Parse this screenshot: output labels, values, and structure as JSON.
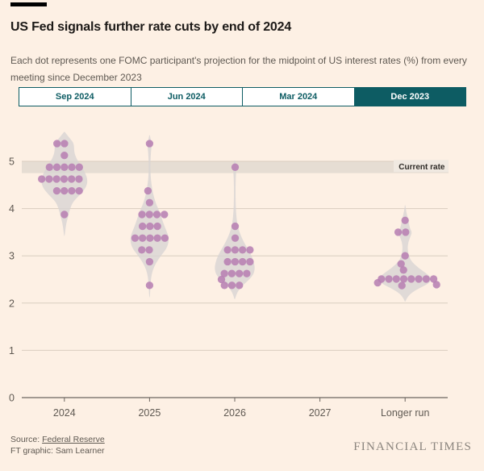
{
  "header": {
    "title": "US Fed signals further rate cuts by end of 2024",
    "subtitle": "Each dot represents one FOMC participant's projection for the midpoint of US interest rates (%) from every meeting since December 2023"
  },
  "tabs": [
    {
      "label": "Sep 2024",
      "selected": false
    },
    {
      "label": "Jun 2024",
      "selected": false
    },
    {
      "label": "Mar 2024",
      "selected": false
    },
    {
      "label": "Dec 2023",
      "selected": true
    }
  ],
  "footer": {
    "source_prefix": "Source: ",
    "source_link": "Federal Reserve",
    "credit": "FT graphic: Sam Learner",
    "brand": "FINANCIAL TIMES"
  },
  "colors": {
    "background": "#fdf0e4",
    "teal": "#0d5c63",
    "dot": "#b77fb3",
    "violin": "#d7d4d3",
    "band": "#e6ddd3",
    "band_label_bg": "#f0e9e1",
    "grid": "#d9cdbf",
    "axis": "#6b655f",
    "text_muted": "#5f5952",
    "text_dark": "#1c1917"
  },
  "chart_data": {
    "type": "scatter",
    "variant": "fomc-dot-plot-beeswarm",
    "title": "US Fed signals further rate cuts by end of 2024",
    "unit": "%",
    "grid": true,
    "ylim": [
      0,
      5.7
    ],
    "yticks": [
      0,
      1,
      2,
      3,
      4,
      5
    ],
    "categories": [
      "2024",
      "2025",
      "2026",
      "2027",
      "Longer run"
    ],
    "current_rate_band": {
      "label": "Current rate",
      "from": 4.75,
      "to": 5.0
    },
    "columns": [
      {
        "category": "2024",
        "dot_rows": [
          {
            "value": 5.375,
            "count": 2,
            "dx": -4.5
          },
          {
            "value": 5.125,
            "count": 1,
            "dx": 0
          },
          {
            "value": 4.875,
            "count": 5,
            "dx": 0
          },
          {
            "value": 4.625,
            "count": 6,
            "dx": -5
          },
          {
            "value": 4.375,
            "count": 4,
            "dx": 4.5
          },
          {
            "value": 3.875,
            "count": 1,
            "dx": 0
          }
        ],
        "violin_profile": [
          [
            5.62,
            0.5
          ],
          [
            5.5,
            6
          ],
          [
            5.38,
            12
          ],
          [
            5.2,
            12
          ],
          [
            5.05,
            15
          ],
          [
            4.9,
            21
          ],
          [
            4.75,
            26
          ],
          [
            4.6,
            29
          ],
          [
            4.45,
            27
          ],
          [
            4.3,
            20
          ],
          [
            4.15,
            11
          ],
          [
            4.0,
            7
          ],
          [
            3.85,
            5
          ],
          [
            3.7,
            2.5
          ],
          [
            3.55,
            1.2
          ],
          [
            3.42,
            0.4
          ]
        ]
      },
      {
        "category": "2025",
        "dot_rows": [
          {
            "value": 5.375,
            "count": 1,
            "dx": 0
          },
          {
            "value": 4.375,
            "count": 1,
            "dx": -2
          },
          {
            "value": 4.125,
            "count": 1,
            "dx": 0
          },
          {
            "value": 3.875,
            "count": 4,
            "dx": 4.5
          },
          {
            "value": 3.625,
            "count": 3,
            "dx": 0.5
          },
          {
            "value": 3.375,
            "count": 5,
            "dx": 0.5
          },
          {
            "value": 3.125,
            "count": 2,
            "dx": -5
          },
          {
            "value": 2.875,
            "count": 1,
            "dx": 0
          },
          {
            "value": 2.375,
            "count": 1,
            "dx": 0
          }
        ],
        "violin_profile": [
          [
            5.55,
            0.4
          ],
          [
            5.45,
            1.5
          ],
          [
            5.38,
            3
          ],
          [
            5.25,
            2
          ],
          [
            5.0,
            1
          ],
          [
            4.7,
            1.2
          ],
          [
            4.5,
            2.5
          ],
          [
            4.3,
            4.5
          ],
          [
            4.1,
            8
          ],
          [
            3.95,
            12
          ],
          [
            3.8,
            15
          ],
          [
            3.6,
            19
          ],
          [
            3.45,
            23
          ],
          [
            3.3,
            24
          ],
          [
            3.15,
            21
          ],
          [
            3.0,
            14
          ],
          [
            2.85,
            8
          ],
          [
            2.7,
            4
          ],
          [
            2.55,
            2
          ],
          [
            2.4,
            1.2
          ],
          [
            2.25,
            0.8
          ],
          [
            2.12,
            0.3
          ]
        ]
      },
      {
        "category": "2026",
        "dot_rows": [
          {
            "value": 4.875,
            "count": 1,
            "dx": 0.5
          },
          {
            "value": 3.625,
            "count": 1,
            "dx": 0.5
          },
          {
            "value": 3.375,
            "count": 1,
            "dx": 0.5
          },
          {
            "value": 3.125,
            "count": 4,
            "dx": 5
          },
          {
            "value": 2.875,
            "count": 4,
            "dx": 5
          },
          {
            "value": 2.625,
            "count": 4,
            "dx": 1
          },
          {
            "value": 2.5,
            "count": 1,
            "dx": -16.5
          },
          {
            "value": 2.375,
            "count": 3,
            "dx": -3.5
          }
        ],
        "violin_profile": [
          [
            5.02,
            0.3
          ],
          [
            4.93,
            1.5
          ],
          [
            4.87,
            2.5
          ],
          [
            4.75,
            1.5
          ],
          [
            4.5,
            1
          ],
          [
            4.2,
            1
          ],
          [
            3.95,
            1.5
          ],
          [
            3.75,
            2.5
          ],
          [
            3.6,
            4
          ],
          [
            3.45,
            7
          ],
          [
            3.3,
            11
          ],
          [
            3.15,
            16
          ],
          [
            3.0,
            21
          ],
          [
            2.85,
            24
          ],
          [
            2.72,
            25
          ],
          [
            2.6,
            23
          ],
          [
            2.48,
            17
          ],
          [
            2.38,
            10
          ],
          [
            2.28,
            5
          ],
          [
            2.18,
            2
          ],
          [
            2.08,
            0.4
          ]
        ]
      },
      {
        "category": "2027",
        "dot_rows": [],
        "violin_profile": []
      },
      {
        "category": "Longer run",
        "dot_rows": [
          {
            "value": 3.75,
            "count": 1,
            "dx": 0
          },
          {
            "value": 3.5,
            "count": 2,
            "dx": -4
          },
          {
            "value": 3.0,
            "count": 1,
            "dx": 0
          },
          {
            "value": 2.83,
            "count": 1,
            "dx": -5
          },
          {
            "value": 2.7,
            "count": 1,
            "dx": -2
          },
          {
            "value": 2.51,
            "count": 8,
            "dx": 3
          },
          {
            "value": 2.43,
            "count": 1,
            "dx": -34
          },
          {
            "value": 2.37,
            "count": 1,
            "dx": -4
          },
          {
            "value": 2.39,
            "count": 1,
            "dx": 39
          }
        ],
        "violin_profile": [
          [
            4.07,
            0.3
          ],
          [
            3.95,
            1.2
          ],
          [
            3.82,
            3
          ],
          [
            3.7,
            4.5
          ],
          [
            3.58,
            6
          ],
          [
            3.5,
            8.5
          ],
          [
            3.42,
            7
          ],
          [
            3.3,
            4
          ],
          [
            3.15,
            3
          ],
          [
            3.0,
            4.5
          ],
          [
            2.88,
            8
          ],
          [
            2.75,
            16
          ],
          [
            2.62,
            27
          ],
          [
            2.52,
            33
          ],
          [
            2.42,
            30
          ],
          [
            2.32,
            18
          ],
          [
            2.22,
            8
          ],
          [
            2.12,
            2.5
          ],
          [
            2.03,
            0.4
          ]
        ]
      }
    ]
  }
}
